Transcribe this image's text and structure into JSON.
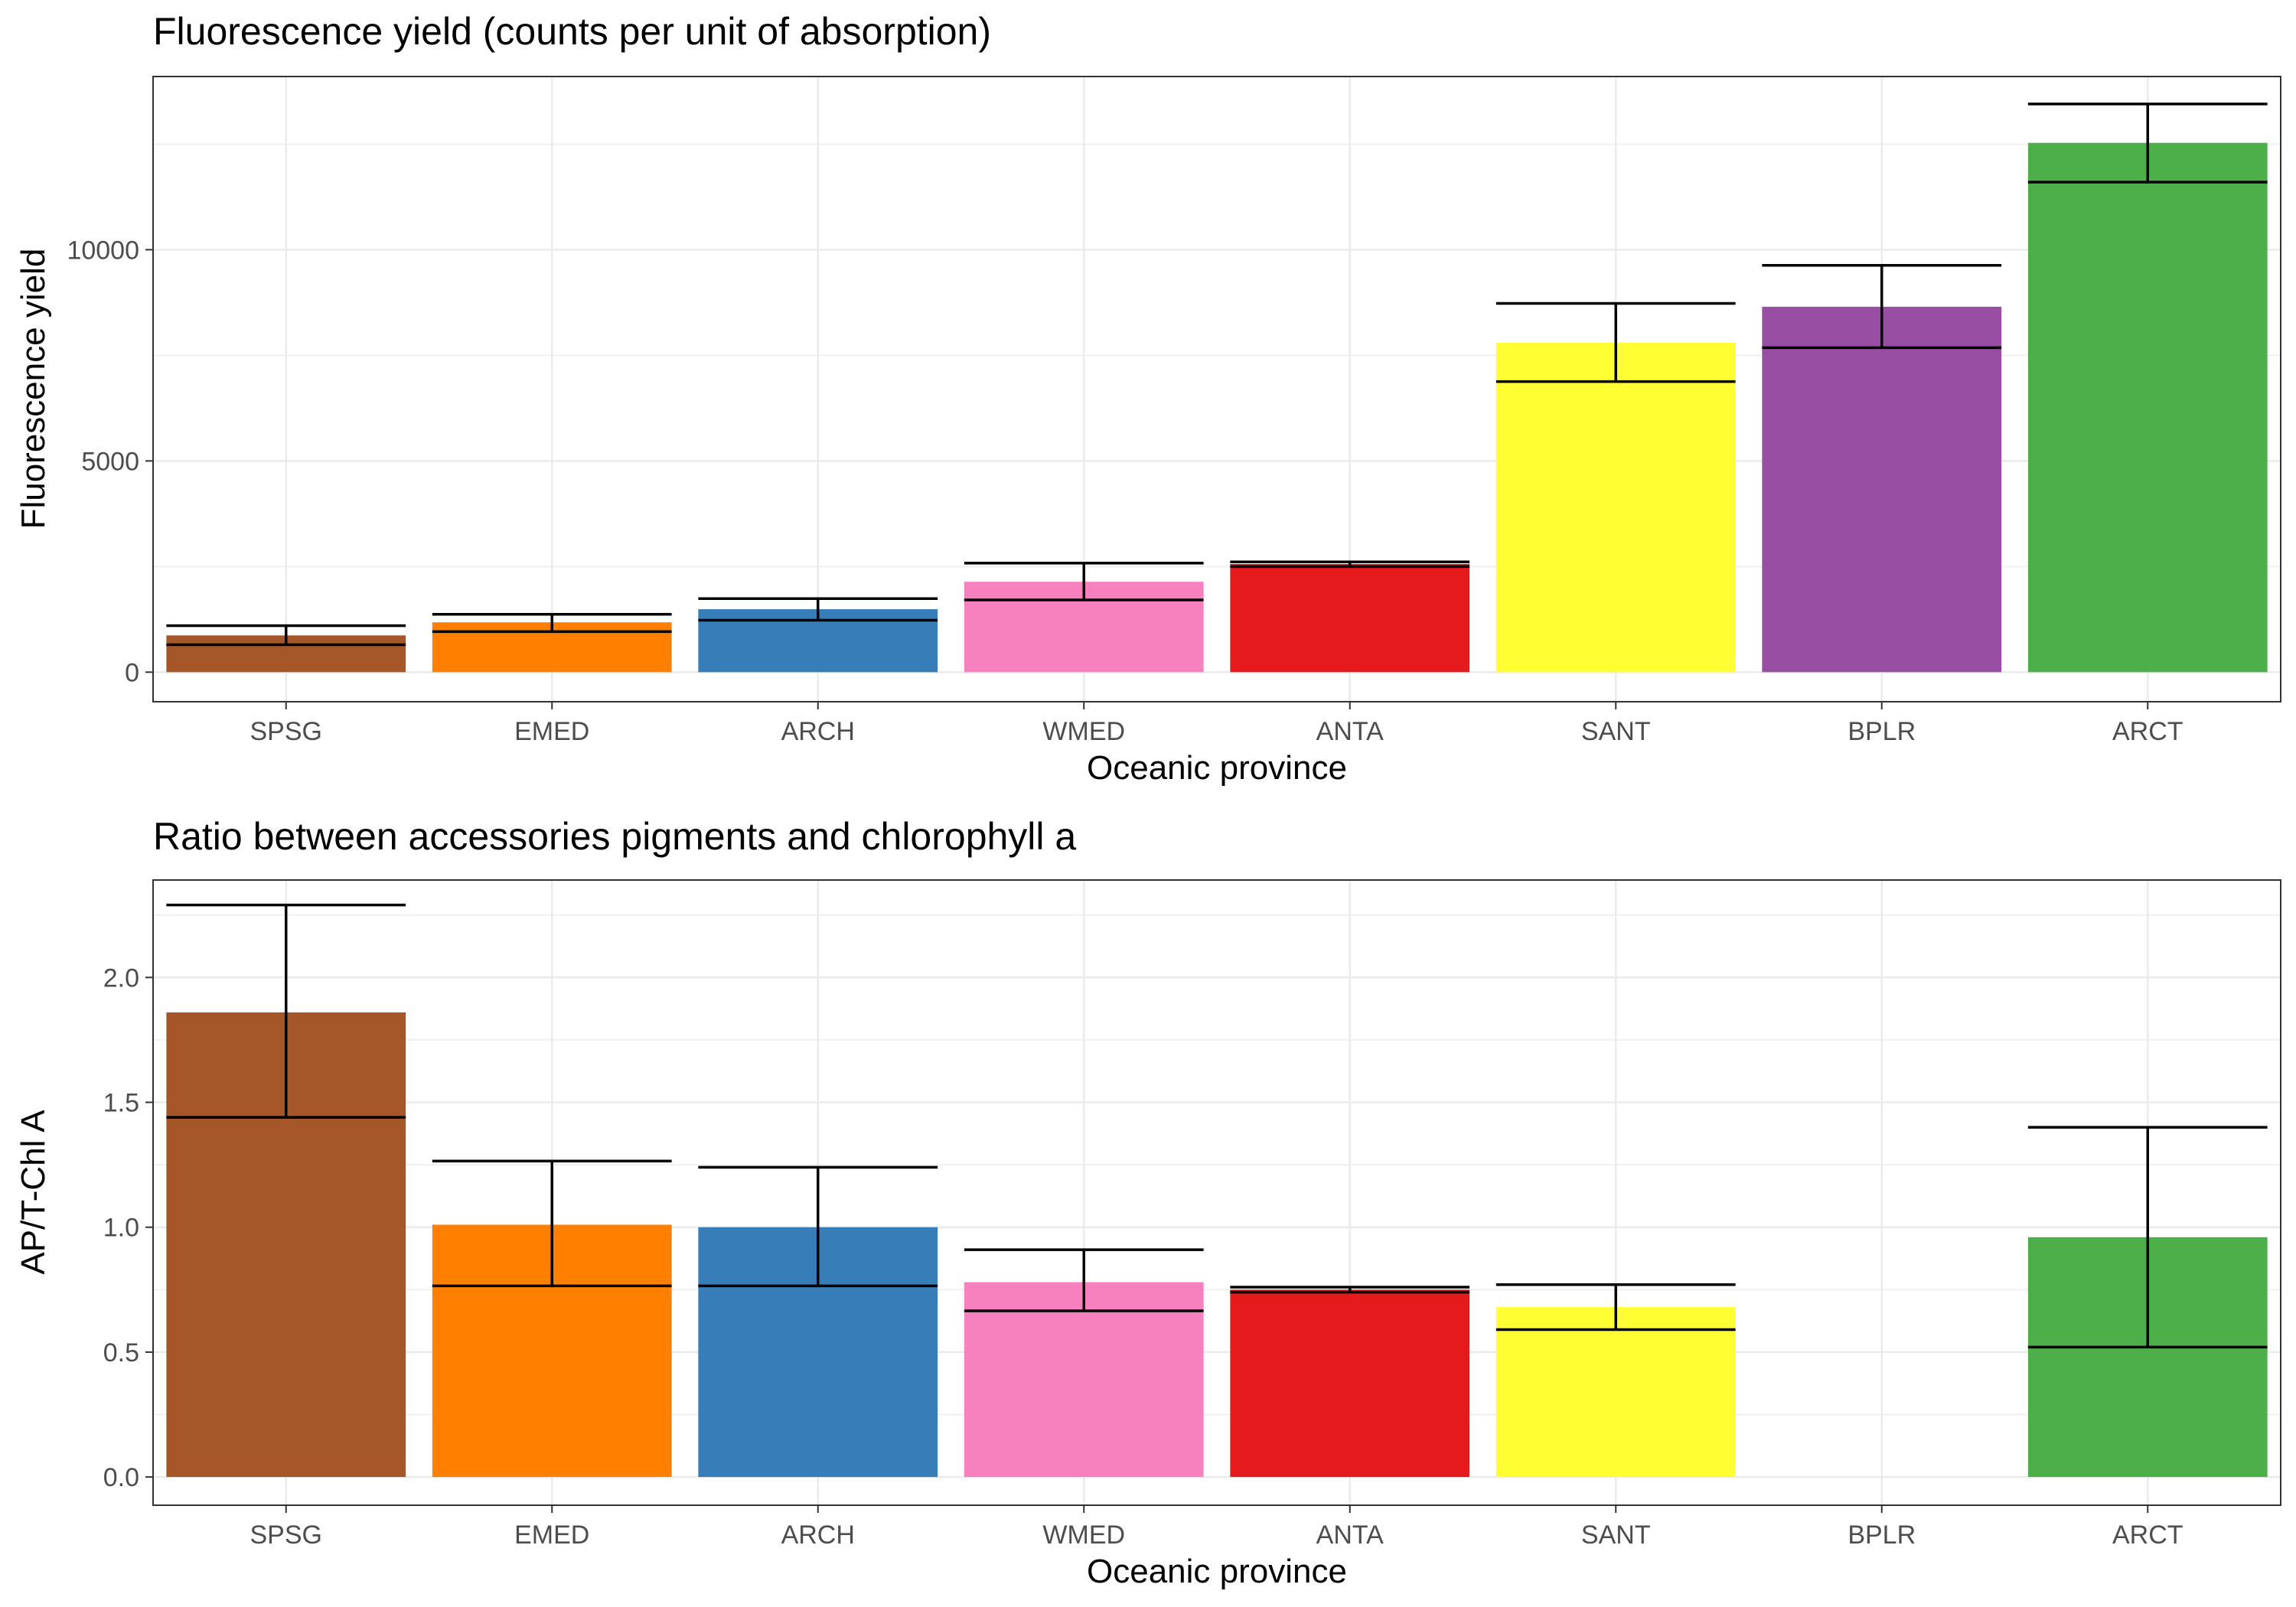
{
  "chart_data": [
    {
      "type": "bar",
      "title": "Fluorescence yield (counts per unit of absorption)",
      "xlabel": "Oceanic province",
      "ylabel": "Fluorescence yield",
      "categories": [
        "SPSG",
        "EMED",
        "ARCH",
        "WMED",
        "ANTA",
        "SANT",
        "BPLR",
        "ARCT"
      ],
      "values": [
        870,
        1180,
        1490,
        2140,
        2560,
        7800,
        8650,
        12530
      ],
      "error_low": [
        650,
        960,
        1230,
        1710,
        2500,
        6880,
        7680,
        11600
      ],
      "error_high": [
        1100,
        1370,
        1740,
        2580,
        2610,
        8730,
        9630,
        13450
      ],
      "colors": [
        "#A6572A",
        "#FF7F00",
        "#377EB8",
        "#F781BF",
        "#E41A1C",
        "#FFFF33",
        "#984EA3",
        "#4DAF4A"
      ],
      "ylim": [
        -700,
        14100
      ],
      "yticks": [
        0,
        5000,
        10000
      ],
      "yminor": [
        2500,
        7500,
        12500
      ],
      "grid": true,
      "legend": "none"
    },
    {
      "type": "bar",
      "title": "Ratio between accessories pigments and chlorophyll a",
      "xlabel": "Oceanic province",
      "ylabel": "AP/T-Chl A",
      "categories": [
        "SPSG",
        "EMED",
        "ARCH",
        "WMED",
        "ANTA",
        "SANT",
        "BPLR",
        "ARCT"
      ],
      "values": [
        1.86,
        1.01,
        1.0,
        0.78,
        0.75,
        0.68,
        null,
        0.96
      ],
      "error_low": [
        1.44,
        0.765,
        0.765,
        0.665,
        0.74,
        0.59,
        null,
        0.52
      ],
      "error_high": [
        2.29,
        1.265,
        1.24,
        0.91,
        0.76,
        0.77,
        null,
        1.4
      ],
      "colors": [
        "#A6572A",
        "#FF7F00",
        "#377EB8",
        "#F781BF",
        "#E41A1C",
        "#FFFF33",
        "#984EA3",
        "#4DAF4A"
      ],
      "ylim": [
        -0.113,
        2.39
      ],
      "yticks": [
        "0.0",
        "0.5",
        "1.0",
        "1.5",
        "2.0"
      ],
      "yminor": [
        0.25,
        0.75,
        1.25,
        1.75,
        2.25
      ],
      "grid": true,
      "legend": "none"
    }
  ]
}
